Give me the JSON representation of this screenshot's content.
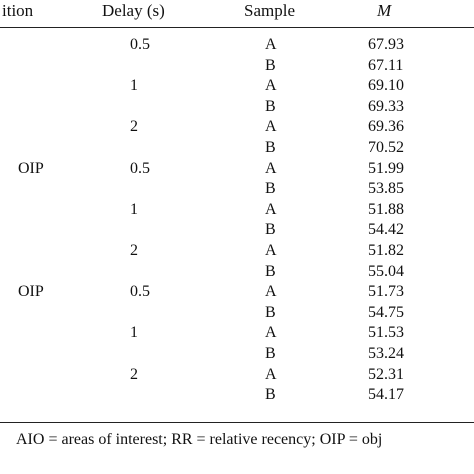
{
  "headers": {
    "condition": "ition",
    "delay": "Delay (s)",
    "sample": "Sample",
    "m": "M"
  },
  "rows": [
    {
      "condition": "",
      "delay": "0.5",
      "sample": "A",
      "m": "67.93"
    },
    {
      "condition": "",
      "delay": "",
      "sample": "B",
      "m": "67.11"
    },
    {
      "condition": "",
      "delay": "1",
      "sample": "A",
      "m": "69.10"
    },
    {
      "condition": "",
      "delay": "",
      "sample": "B",
      "m": "69.33"
    },
    {
      "condition": "",
      "delay": "2",
      "sample": "A",
      "m": "69.36"
    },
    {
      "condition": "",
      "delay": "",
      "sample": "B",
      "m": "70.52"
    },
    {
      "condition": "OIP",
      "delay": "0.5",
      "sample": "A",
      "m": "51.99"
    },
    {
      "condition": "",
      "delay": "",
      "sample": "B",
      "m": "53.85"
    },
    {
      "condition": "",
      "delay": "1",
      "sample": "A",
      "m": "51.88"
    },
    {
      "condition": "",
      "delay": "",
      "sample": "B",
      "m": "54.42"
    },
    {
      "condition": "",
      "delay": "2",
      "sample": "A",
      "m": "51.82"
    },
    {
      "condition": "",
      "delay": "",
      "sample": "B",
      "m": "55.04"
    },
    {
      "condition": "OIP",
      "delay": "0.5",
      "sample": "A",
      "m": "51.73"
    },
    {
      "condition": "",
      "delay": "",
      "sample": "B",
      "m": "54.75"
    },
    {
      "condition": "",
      "delay": "1",
      "sample": "A",
      "m": "51.53"
    },
    {
      "condition": "",
      "delay": "",
      "sample": "B",
      "m": "53.24"
    },
    {
      "condition": "",
      "delay": "2",
      "sample": "A",
      "m": "52.31"
    },
    {
      "condition": "",
      "delay": "",
      "sample": "B",
      "m": "54.17"
    }
  ],
  "footnote": "AIO = areas of interest; RR = relative recency; OIP = obj"
}
